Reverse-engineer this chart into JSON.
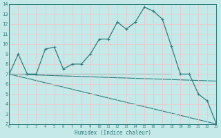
{
  "xlabel": "Humidex (Indice chaleur)",
  "bg_color": "#c5e8e8",
  "grid_color": "#e8c8c8",
  "line_color": "#2d7d7d",
  "xlim": [
    0,
    23
  ],
  "ylim": [
    2,
    14
  ],
  "yticks": [
    2,
    3,
    4,
    5,
    6,
    7,
    8,
    9,
    10,
    11,
    12,
    13,
    14
  ],
  "xticks": [
    0,
    1,
    2,
    3,
    4,
    5,
    6,
    7,
    8,
    9,
    10,
    11,
    12,
    13,
    14,
    15,
    16,
    17,
    18,
    19,
    20,
    21,
    22,
    23
  ],
  "main_x": [
    0,
    1,
    2,
    3,
    4,
    5,
    6,
    7,
    8,
    9,
    10,
    11,
    12,
    13,
    14,
    15,
    16,
    17,
    18,
    19,
    20,
    21,
    22,
    23
  ],
  "main_y": [
    7.0,
    9.0,
    7.0,
    7.0,
    9.5,
    9.7,
    7.5,
    8.0,
    8.0,
    9.0,
    10.5,
    10.5,
    12.2,
    11.5,
    12.2,
    13.7,
    13.3,
    12.5,
    9.8,
    7.0,
    7.0,
    5.0,
    4.3,
    2.0
  ],
  "line2_x": [
    0,
    18
  ],
  "line2_y": [
    7.0,
    7.0
  ],
  "line3_x": [
    0,
    23
  ],
  "line3_y": [
    7.0,
    6.3
  ],
  "line4_x": [
    0,
    23
  ],
  "line4_y": [
    7.0,
    2.0
  ]
}
